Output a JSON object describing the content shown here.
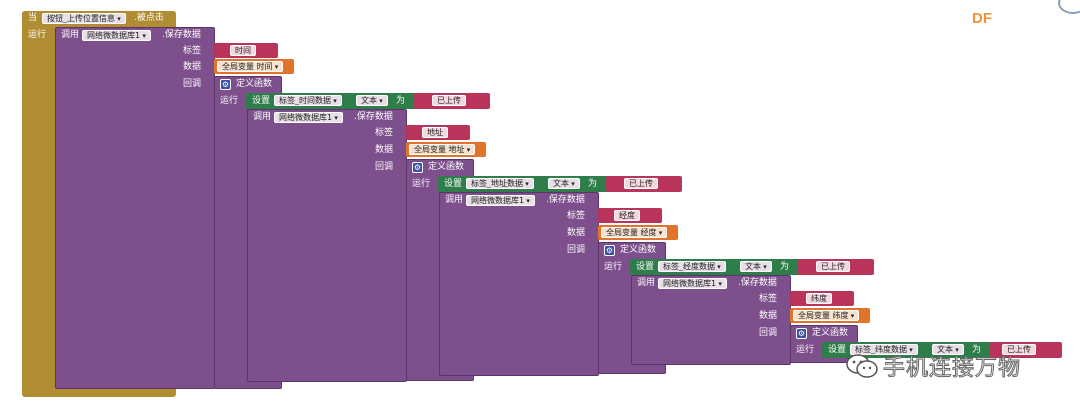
{
  "event": {
    "when": "当",
    "component": "按钮_上传位置信息",
    "event_name": ".被点击",
    "do": "运行"
  },
  "levels": [
    {
      "call": "调用",
      "db": "网络微数据库1",
      "method": ".保存数据",
      "tag_label": "标签",
      "tag_value": "时间",
      "data_label": "数据",
      "var_value": "全局变量 时间",
      "callback_label": "回调",
      "define_func": "定义函数",
      "do_label": "运行",
      "set": "设置",
      "target": "标签_时间数据",
      "prop": "文本",
      "to": "为",
      "value": "已上传"
    },
    {
      "call": "调用",
      "db": "网络微数据库1",
      "method": ".保存数据",
      "tag_label": "标签",
      "tag_value": "地址",
      "data_label": "数据",
      "var_value": "全局变量 地址",
      "callback_label": "回调",
      "define_func": "定义函数",
      "do_label": "运行",
      "set": "设置",
      "target": "标签_地址数据",
      "prop": "文本",
      "to": "为",
      "value": "已上传"
    },
    {
      "call": "调用",
      "db": "网络微数据库1",
      "method": ".保存数据",
      "tag_label": "标签",
      "tag_value": "经度",
      "data_label": "数据",
      "var_value": "全局变量 经度",
      "callback_label": "回调",
      "define_func": "定义函数",
      "do_label": "运行",
      "set": "设置",
      "target": "标签_经度数据",
      "prop": "文本",
      "to": "为",
      "value": "已上传"
    },
    {
      "call": "调用",
      "db": "网络微数据库1",
      "method": ".保存数据",
      "tag_label": "标签",
      "tag_value": "纬度",
      "data_label": "数据",
      "var_value": "全局变量 纬度",
      "callback_label": "回调",
      "define_func": "定义函数",
      "do_label": "运行",
      "set": "设置",
      "target": "标签_纬度数据",
      "prop": "文本",
      "to": "为",
      "value": "已上传"
    }
  ],
  "brand": "DF",
  "watermark": "手机连接万物",
  "colors": {
    "event": "#b08d32",
    "procedure": "#7d4f8c",
    "setter": "#2f7d4a",
    "text": "#b8345a",
    "variable": "#e0742c",
    "brand": "#f0913a"
  },
  "icons": [
    "gear-icon",
    "wechat-icon"
  ]
}
